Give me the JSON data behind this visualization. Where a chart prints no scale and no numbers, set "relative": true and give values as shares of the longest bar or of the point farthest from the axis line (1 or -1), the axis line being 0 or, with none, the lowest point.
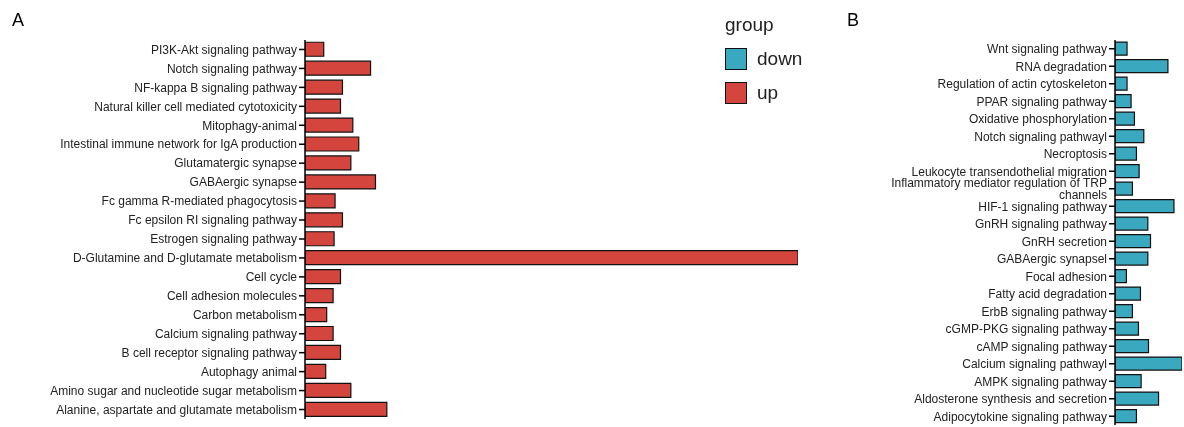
{
  "chart_data": [
    {
      "type": "bar",
      "title": "A",
      "orientation": "horizontal",
      "relative": true,
      "categories": [
        "PI3K-Akt signaling pathway",
        "Notch signaling pathway",
        "NF-kappa B signaling pathway",
        "Natural killer cell mediated cytotoxicity",
        "Mitophagy-animal",
        "Intestinal immune network for IgA production",
        "Glutamatergic synapse",
        "GABAergic synapse",
        "Fc gamma R-mediated phagocytosis",
        "Fc epsilon RI signaling pathway",
        "Estrogen signaling pathway",
        "D-Glutamine and D-glutamate metabolism",
        "Cell cycle",
        "Cell adhesion molecules",
        "Carbon metabolism",
        "Calcium signaling pathway",
        "B cell receptor signaling pathway",
        "Autophagy animal",
        "Amino sugar and nucleotide sugar metabolism",
        "Alanine, aspartate and glutamate metabolism"
      ],
      "series": [
        {
          "name": "up",
          "color": "#d4463d",
          "values": [
            0.038,
            0.133,
            0.076,
            0.072,
            0.097,
            0.109,
            0.093,
            0.143,
            0.061,
            0.076,
            0.059,
            1,
            0.072,
            0.057,
            0.044,
            0.057,
            0.072,
            0.042,
            0.093,
            0.166
          ]
        }
      ]
    },
    {
      "type": "bar",
      "title": "B",
      "orientation": "horizontal",
      "relative": true,
      "legend": "top left",
      "legend_title": "group",
      "categories": [
        "Wnt signaling pathway",
        "RNA degradation",
        "Regulation of actin cytoskeleton",
        "PPAR signaling pathway",
        "Oxidative phosphorylation",
        "Notch signaling pathwayl",
        "Necroptosis",
        "Leukocyte transendothelial migration",
        "Inflammatory mediator regulation of TRP channels",
        "HIF-1 signaling pathway",
        "GnRH signaling pathway",
        "GnRH secretion",
        "GABAergic synapsel",
        "Focal adhesion",
        "Fatty acid degradation",
        "ErbB signaling pathway",
        "cGMP-PKG signaling pathway",
        "cAMP signaling pathway",
        "Calcium signaling pathwayl",
        "AMPK signaling pathway",
        "Aldosterone synthesis and secretion",
        "Adipocytokine signaling pathway"
      ],
      "series": [
        {
          "name": "down",
          "color": "#3aa9bf",
          "values": [
            0.18,
            0.79,
            0.18,
            0.24,
            0.29,
            0.43,
            0.32,
            0.36,
            0.26,
            0.88,
            0.49,
            0.53,
            0.49,
            0.17,
            0.38,
            0.26,
            0.35,
            0.5,
            1,
            0.39,
            0.65,
            0.32
          ]
        }
      ]
    }
  ]
}
